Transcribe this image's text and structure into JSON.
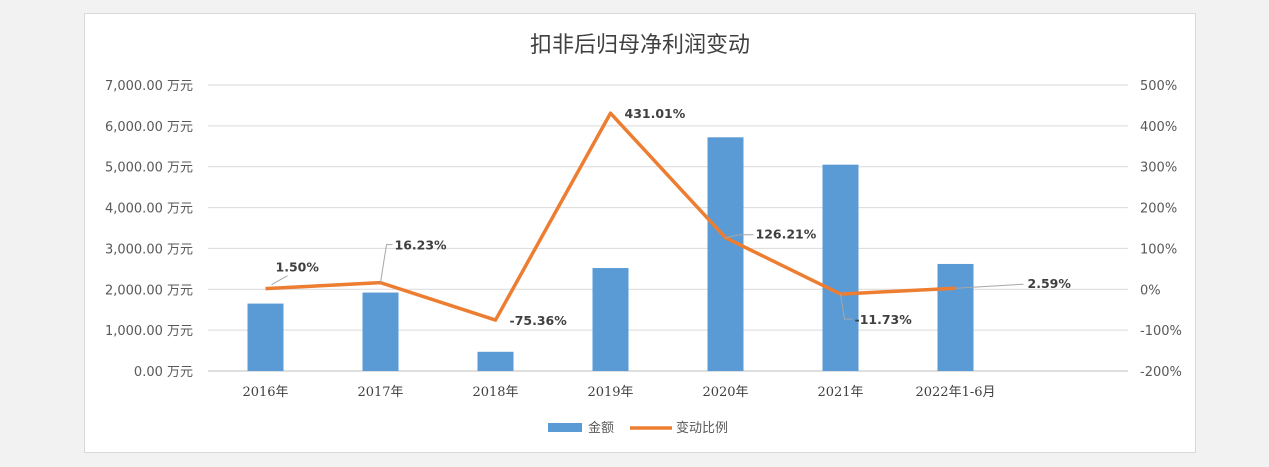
{
  "chart_data": {
    "type": "bar",
    "title": "扣非后归母净利润变动",
    "categories": [
      "2016年",
      "2017年",
      "2018年",
      "2019年",
      "2020年",
      "2021年",
      "2022年1-6月"
    ],
    "series": [
      {
        "name": "金额",
        "type": "bar",
        "axis": "left",
        "color": "#5b9bd5",
        "values": [
          1650,
          1920,
          470,
          2520,
          5720,
          5050,
          2620
        ]
      },
      {
        "name": "变动比例",
        "type": "line",
        "axis": "right",
        "color": "#ed7d31",
        "values": [
          1.5,
          16.23,
          -75.36,
          431.01,
          126.21,
          -11.73,
          2.59
        ],
        "labels": [
          "1.50%",
          "16.23%",
          "-75.36%",
          "431.01%",
          "126.21%",
          "-11.73%",
          "2.59%"
        ]
      }
    ],
    "y_left": {
      "min": 0,
      "max": 7000,
      "ticks": [
        "0.00 万元",
        "1,000.00 万元",
        "2,000.00 万元",
        "3,000.00 万元",
        "4,000.00 万元",
        "5,000.00 万元",
        "6,000.00 万元",
        "7,000.00 万元"
      ]
    },
    "y_right": {
      "min": -200,
      "max": 500,
      "ticks": [
        "-200%",
        "-100%",
        "0%",
        "100%",
        "200%",
        "300%",
        "400%",
        "500%"
      ]
    },
    "grid": true,
    "legend": "bottom-center"
  }
}
